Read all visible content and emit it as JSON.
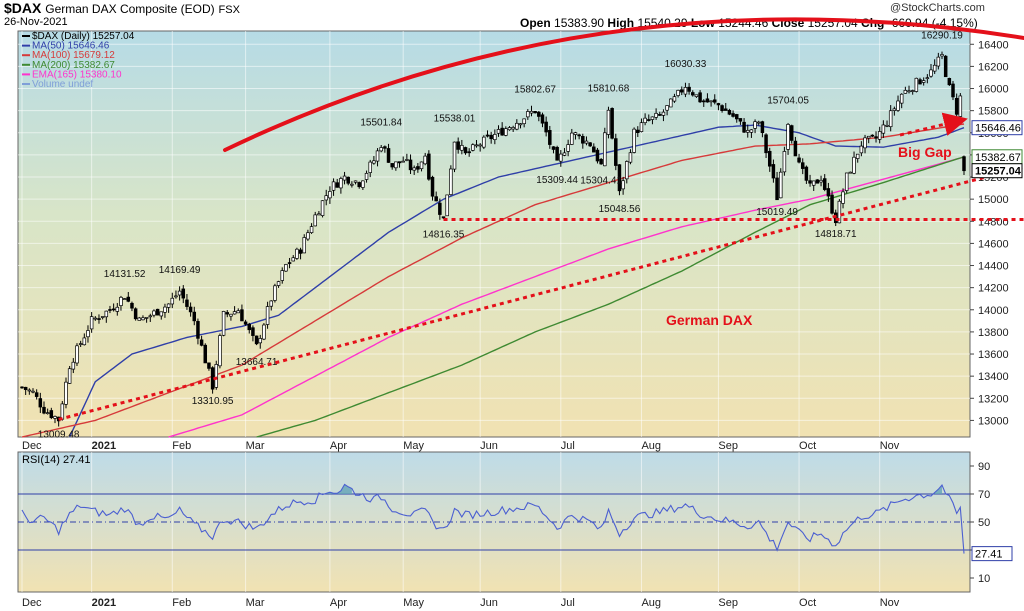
{
  "header": {
    "symbol": "$DAX",
    "name": "German DAX Composite (EOD)",
    "exchange": "FSX",
    "date": "26-Nov-2021",
    "brand": "@StockCharts.com",
    "open_label": "Open",
    "open": "15383.90",
    "high_label": "High",
    "high": "15540.29",
    "low_label": "Low",
    "low": "15244.46",
    "close_label": "Close",
    "close": "15257.04",
    "chg_label": "Chg",
    "chg": "-660.94 (-4.15%)"
  },
  "legend": [
    {
      "label": "$DAX (Daily) 15257.04",
      "color": "#000000"
    },
    {
      "label": "MA(50) 15646.46",
      "color": "#2f3fa8"
    },
    {
      "label": "MA(100) 15679.12",
      "color": "#d63a3a"
    },
    {
      "label": "MA(200) 15382.67",
      "color": "#3f8a32"
    },
    {
      "label": "EMA(165) 15380.10",
      "color": "#ff33cc"
    },
    {
      "label": "Volume undef",
      "color": "#7f9fd8"
    }
  ],
  "annotations": {
    "center_label": "German DAX",
    "gap_label": "Big Gap",
    "accent": "#e4101a"
  },
  "price_labels": [
    {
      "t": 10,
      "v": 13009.48,
      "text": "13009.48",
      "pos": "below"
    },
    {
      "t": 28,
      "v": 14131.52,
      "text": "14131.52",
      "pos": "above"
    },
    {
      "t": 43,
      "v": 14169.49,
      "text": "14169.49",
      "pos": "above"
    },
    {
      "t": 52,
      "v": 13310.95,
      "text": "13310.95",
      "pos": "below"
    },
    {
      "t": 64,
      "v": 13664.71,
      "text": "13664.71",
      "pos": "below"
    },
    {
      "t": 98,
      "v": 15501.84,
      "text": "15501.84",
      "pos": "above"
    },
    {
      "t": 118,
      "v": 15538.01,
      "text": "15538.01",
      "pos": "above"
    },
    {
      "t": 115,
      "v": 14816.35,
      "text": "14816.35",
      "pos": "below"
    },
    {
      "t": 140,
      "v": 15802.67,
      "text": "15802.67",
      "pos": "above"
    },
    {
      "t": 146,
      "v": 15309.44,
      "text": "15309.44",
      "pos": "below"
    },
    {
      "t": 160,
      "v": 15810.68,
      "text": "15810.68",
      "pos": "above"
    },
    {
      "t": 158,
      "v": 15304.41,
      "text": "15304.41",
      "pos": "below"
    },
    {
      "t": 163,
      "v": 15048.56,
      "text": "15048.56",
      "pos": "below"
    },
    {
      "t": 181,
      "v": 16030.33,
      "text": "16030.33",
      "pos": "above"
    },
    {
      "t": 209,
      "v": 15704.05,
      "text": "15704.05",
      "pos": "above"
    },
    {
      "t": 206,
      "v": 15019.49,
      "text": "15019.49",
      "pos": "below"
    },
    {
      "t": 222,
      "v": 14818.71,
      "text": "14818.71",
      "pos": "below"
    },
    {
      "t": 251,
      "v": 16290.19,
      "text": "16290.19",
      "pos": "above"
    }
  ],
  "chart_data": {
    "type": "candlestick",
    "title": "$DAX German DAX Composite (EOD) FSX",
    "price_axis": {
      "ylim": [
        12850,
        16520
      ],
      "ticks": [
        13000,
        13200,
        13400,
        13600,
        13800,
        14000,
        14200,
        14400,
        14600,
        14800,
        15000,
        15200,
        15400,
        15600,
        15800,
        16000,
        16200,
        16400
      ]
    },
    "rsi_axis": {
      "ylim": [
        0,
        100
      ],
      "ticks": [
        10,
        30,
        50,
        70,
        90
      ],
      "levels": [
        30,
        50,
        70
      ]
    },
    "trading_days": 258,
    "months": [
      {
        "label": "Dec",
        "t": 0,
        "bold": false
      },
      {
        "label": "2021",
        "t": 19,
        "bold": true
      },
      {
        "label": "Feb",
        "t": 41,
        "bold": false
      },
      {
        "label": "Mar",
        "t": 61,
        "bold": false
      },
      {
        "label": "Apr",
        "t": 84,
        "bold": false
      },
      {
        "label": "May",
        "t": 104,
        "bold": false
      },
      {
        "label": "Jun",
        "t": 125,
        "bold": false
      },
      {
        "label": "Jul",
        "t": 147,
        "bold": false
      },
      {
        "label": "Aug",
        "t": 169,
        "bold": false
      },
      {
        "label": "Sep",
        "t": 190,
        "bold": false
      },
      {
        "label": "Oct",
        "t": 212,
        "bold": false
      },
      {
        "label": "Nov",
        "t": 234,
        "bold": false
      }
    ],
    "price_anchors": [
      [
        0,
        13300
      ],
      [
        3,
        13250
      ],
      [
        6,
        13100
      ],
      [
        10,
        13009
      ],
      [
        13,
        13500
      ],
      [
        16,
        13700
      ],
      [
        19,
        13900
      ],
      [
        24,
        14000
      ],
      [
        28,
        14131
      ],
      [
        32,
        13900
      ],
      [
        35,
        13950
      ],
      [
        40,
        14050
      ],
      [
        43,
        14169
      ],
      [
        47,
        13900
      ],
      [
        52,
        13311
      ],
      [
        55,
        13950
      ],
      [
        59,
        14000
      ],
      [
        64,
        13665
      ],
      [
        68,
        14100
      ],
      [
        72,
        14400
      ],
      [
        76,
        14550
      ],
      [
        80,
        14850
      ],
      [
        84,
        15100
      ],
      [
        88,
        15200
      ],
      [
        92,
        15150
      ],
      [
        96,
        15350
      ],
      [
        98,
        15502
      ],
      [
        101,
        15300
      ],
      [
        104,
        15350
      ],
      [
        107,
        15250
      ],
      [
        110,
        15400
      ],
      [
        112,
        15050
      ],
      [
        115,
        14816
      ],
      [
        118,
        15538
      ],
      [
        121,
        15400
      ],
      [
        125,
        15500
      ],
      [
        130,
        15600
      ],
      [
        135,
        15700
      ],
      [
        140,
        15803
      ],
      [
        143,
        15600
      ],
      [
        146,
        15309
      ],
      [
        150,
        15600
      ],
      [
        155,
        15500
      ],
      [
        158,
        15304
      ],
      [
        160,
        15811
      ],
      [
        163,
        15049
      ],
      [
        167,
        15600
      ],
      [
        170,
        15700
      ],
      [
        174,
        15750
      ],
      [
        178,
        15900
      ],
      [
        181,
        16030
      ],
      [
        185,
        15900
      ],
      [
        190,
        15850
      ],
      [
        194,
        15750
      ],
      [
        198,
        15600
      ],
      [
        201,
        15700
      ],
      [
        204,
        15300
      ],
      [
        206,
        15019
      ],
      [
        209,
        15704
      ],
      [
        212,
        15300
      ],
      [
        215,
        15100
      ],
      [
        218,
        15200
      ],
      [
        220,
        15000
      ],
      [
        222,
        14819
      ],
      [
        225,
        15200
      ],
      [
        229,
        15500
      ],
      [
        233,
        15550
      ],
      [
        236,
        15700
      ],
      [
        240,
        15950
      ],
      [
        244,
        16050
      ],
      [
        248,
        16150
      ],
      [
        251,
        16290
      ],
      [
        253,
        16000
      ],
      [
        255,
        15800
      ],
      [
        256,
        15918
      ],
      [
        257,
        15257
      ]
    ],
    "series": [
      {
        "name": "MA(50)",
        "color": "#2f3fa8",
        "anchors": [
          [
            13,
            12850
          ],
          [
            20,
            13350
          ],
          [
            30,
            13600
          ],
          [
            45,
            13750
          ],
          [
            60,
            13850
          ],
          [
            70,
            13950
          ],
          [
            84,
            14300
          ],
          [
            100,
            14700
          ],
          [
            115,
            15000
          ],
          [
            130,
            15200
          ],
          [
            150,
            15350
          ],
          [
            170,
            15500
          ],
          [
            190,
            15650
          ],
          [
            200,
            15670
          ],
          [
            212,
            15600
          ],
          [
            222,
            15480
          ],
          [
            235,
            15470
          ],
          [
            250,
            15560
          ],
          [
            257,
            15646
          ]
        ]
      },
      {
        "name": "MA(100)",
        "color": "#d63a3a",
        "anchors": [
          [
            0,
            12850
          ],
          [
            20,
            13000
          ],
          [
            40,
            13250
          ],
          [
            60,
            13500
          ],
          [
            80,
            13900
          ],
          [
            100,
            14300
          ],
          [
            120,
            14650
          ],
          [
            140,
            14950
          ],
          [
            160,
            15150
          ],
          [
            180,
            15350
          ],
          [
            200,
            15480
          ],
          [
            215,
            15500
          ],
          [
            235,
            15560
          ],
          [
            257,
            15679
          ]
        ]
      },
      {
        "name": "EMA(165)",
        "color": "#ff33cc",
        "anchors": [
          [
            40,
            12850
          ],
          [
            60,
            13050
          ],
          [
            80,
            13400
          ],
          [
            100,
            13750
          ],
          [
            120,
            14050
          ],
          [
            140,
            14300
          ],
          [
            160,
            14550
          ],
          [
            180,
            14750
          ],
          [
            200,
            14900
          ],
          [
            215,
            15000
          ],
          [
            235,
            15180
          ],
          [
            257,
            15380
          ]
        ]
      },
      {
        "name": "MA(200)",
        "color": "#3f8a32",
        "anchors": [
          [
            64,
            12850
          ],
          [
            80,
            13000
          ],
          [
            100,
            13250
          ],
          [
            120,
            13500
          ],
          [
            140,
            13800
          ],
          [
            160,
            14050
          ],
          [
            180,
            14350
          ],
          [
            200,
            14700
          ],
          [
            215,
            14950
          ],
          [
            235,
            15150
          ],
          [
            257,
            15383
          ]
        ]
      }
    ],
    "rsi": {
      "name": "RSI(14)",
      "last": 27.41,
      "color": "#4b5fd1",
      "fill": "#62a3b6",
      "anchors": [
        [
          0,
          56
        ],
        [
          3,
          50
        ],
        [
          6,
          53
        ],
        [
          10,
          44
        ],
        [
          13,
          55
        ],
        [
          16,
          62
        ],
        [
          19,
          58
        ],
        [
          24,
          55
        ],
        [
          28,
          60
        ],
        [
          32,
          48
        ],
        [
          35,
          54
        ],
        [
          40,
          52
        ],
        [
          43,
          58
        ],
        [
          47,
          48
        ],
        [
          52,
          40
        ],
        [
          55,
          52
        ],
        [
          59,
          50
        ],
        [
          64,
          45
        ],
        [
          68,
          55
        ],
        [
          72,
          62
        ],
        [
          76,
          65
        ],
        [
          80,
          66
        ],
        [
          84,
          73
        ],
        [
          86,
          71
        ],
        [
          88,
          76
        ],
        [
          92,
          70
        ],
        [
          96,
          66
        ],
        [
          98,
          68
        ],
        [
          101,
          60
        ],
        [
          104,
          57
        ],
        [
          107,
          55
        ],
        [
          110,
          58
        ],
        [
          112,
          50
        ],
        [
          115,
          44
        ],
        [
          118,
          58
        ],
        [
          121,
          55
        ],
        [
          125,
          56
        ],
        [
          130,
          58
        ],
        [
          135,
          60
        ],
        [
          140,
          62
        ],
        [
          143,
          55
        ],
        [
          146,
          46
        ],
        [
          150,
          55
        ],
        [
          155,
          50
        ],
        [
          158,
          44
        ],
        [
          160,
          58
        ],
        [
          163,
          42
        ],
        [
          167,
          53
        ],
        [
          170,
          55
        ],
        [
          174,
          57
        ],
        [
          178,
          60
        ],
        [
          181,
          62
        ],
        [
          185,
          56
        ],
        [
          190,
          52
        ],
        [
          194,
          50
        ],
        [
          198,
          47
        ],
        [
          201,
          50
        ],
        [
          204,
          38
        ],
        [
          206,
          32
        ],
        [
          209,
          50
        ],
        [
          212,
          42
        ],
        [
          215,
          38
        ],
        [
          218,
          42
        ],
        [
          220,
          37
        ],
        [
          222,
          34
        ],
        [
          225,
          45
        ],
        [
          229,
          54
        ],
        [
          233,
          56
        ],
        [
          236,
          60
        ],
        [
          240,
          66
        ],
        [
          244,
          69
        ],
        [
          248,
          70
        ],
        [
          251,
          76
        ],
        [
          253,
          66
        ],
        [
          255,
          56
        ],
        [
          256,
          60
        ],
        [
          257,
          27.41
        ]
      ]
    },
    "annotation_lines": [
      {
        "name": "support-line",
        "style": "dotted",
        "from": [
          10,
          13009
        ],
        "to": [
          258,
          15250
        ]
      },
      {
        "name": "horizontal-support",
        "style": "dotted",
        "from": [
          115,
          14816
        ],
        "to": [
          258,
          14816
        ]
      }
    ]
  },
  "price_tags": [
    {
      "text": "15646.46",
      "v": 15646,
      "style": "blue"
    },
    {
      "text": "15382.67",
      "v": 15383,
      "style": "green"
    },
    {
      "text": "15257.04",
      "v": 15257,
      "style": "black"
    }
  ]
}
